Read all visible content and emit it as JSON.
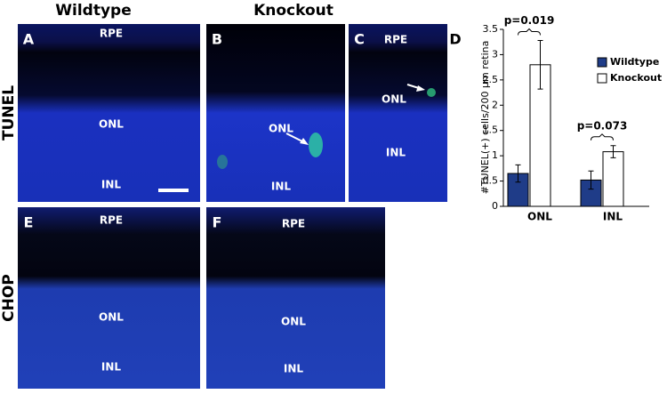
{
  "figure": {
    "column_headers": [
      "Wildtype",
      "Knockout"
    ],
    "row_headers": [
      "TUNEL",
      "CHOP"
    ],
    "panels": [
      {
        "letter": "A",
        "labels": [
          "RPE",
          "ONL",
          "INL"
        ]
      },
      {
        "letter": "B",
        "labels": [
          "ONL",
          "INL"
        ]
      },
      {
        "letter": "C",
        "labels": [
          "RPE",
          "ONL",
          "INL"
        ]
      },
      {
        "letter": "E",
        "labels": [
          "RPE",
          "ONL",
          "INL"
        ]
      },
      {
        "letter": "F",
        "labels": [
          "RPE",
          "ONL",
          "INL"
        ]
      }
    ]
  },
  "chart_data": {
    "type": "bar",
    "panel_letter": "D",
    "ylabel": "#TUNEL(+) cells/200 μm retina",
    "categories": [
      "ONL",
      "INL"
    ],
    "series": [
      {
        "name": "Wildtype",
        "color": "#1f3c88",
        "values": [
          0.65,
          0.52
        ],
        "errors": [
          0.17,
          0.18
        ]
      },
      {
        "name": "Knockout",
        "color": "#ffffff",
        "values": [
          2.8,
          1.08
        ],
        "errors": [
          0.48,
          0.12
        ]
      }
    ],
    "annotations": [
      "p=0.019",
      "p=0.073"
    ],
    "ylim": [
      0,
      3.5
    ],
    "yticks": [
      0,
      0.5,
      1,
      1.5,
      2,
      2.5,
      3,
      3.5
    ]
  }
}
